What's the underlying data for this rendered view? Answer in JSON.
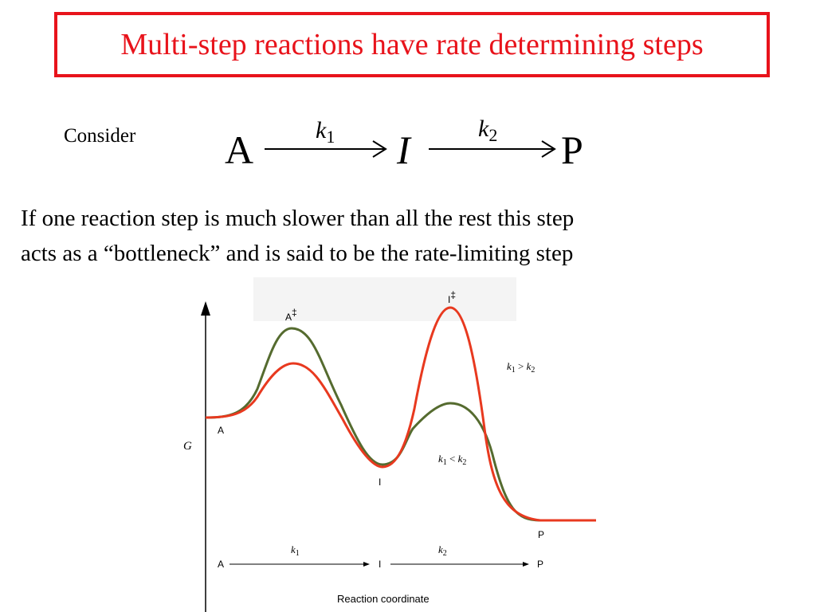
{
  "title": "Multi-step reactions have rate determining steps",
  "consider_label": "Consider",
  "scheme": {
    "reactant": "A",
    "intermediate": "I",
    "product": "P",
    "k1_symbol": "k",
    "k1_subscript": "1",
    "k2_symbol": "k",
    "k2_subscript": "2"
  },
  "body_line1": "If one reaction step is much slower than all the rest this step",
  "body_line2": "acts as a “bottleneck” and is said to be the rate-limiting step",
  "diagram": {
    "y_axis_label": "G",
    "x_axis_label": "Reaction coordinate",
    "point_A": "A",
    "point_I": "I",
    "point_P": "P",
    "ts_A": "A",
    "ts_I": "I",
    "double_dagger": "‡",
    "green_curve_label": {
      "left": "k",
      "sub1": "1",
      "op": " > ",
      "right": "k",
      "sub2": "2"
    },
    "red_curve_label": {
      "left": "k",
      "sub1": "1",
      "op": " < ",
      "right": "k",
      "sub2": "2"
    },
    "arrow_row": {
      "start": "A",
      "mid": "I",
      "end": "P",
      "k1_symbol": "k",
      "k1_subscript": "1",
      "k2_symbol": "k",
      "k2_subscript": "2"
    },
    "colors": {
      "green_curve": "#556b2f",
      "red_curve": "#e8391f"
    }
  }
}
